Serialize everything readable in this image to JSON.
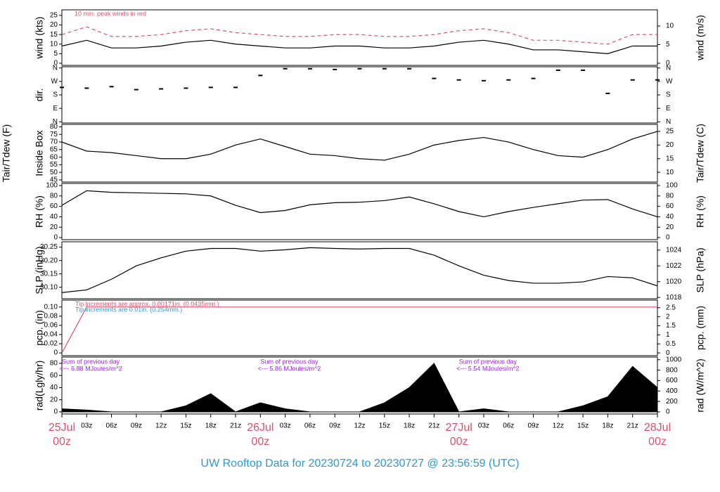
{
  "title": "UW Rooftop Data for 20230724  to  20230727 @ 23:56:59  (UTC)",
  "chart_data": [
    {
      "type": "line",
      "ylabel": "wind (kts)",
      "y2label": "wind (m/s)",
      "x": [
        0,
        3,
        6,
        9,
        12,
        15,
        18,
        21,
        24,
        27,
        30,
        33,
        36,
        39,
        42,
        45,
        48,
        51,
        54,
        57,
        60,
        63,
        66,
        69,
        72
      ],
      "series": [
        {
          "name": "wind",
          "color": "#000000",
          "style": "solid",
          "values": [
            9,
            12,
            8,
            8,
            9,
            11,
            12,
            10,
            9,
            8,
            8,
            9,
            9,
            8,
            8,
            9,
            11,
            12,
            10,
            7,
            7,
            6,
            5,
            9,
            9
          ]
        },
        {
          "name": "peak",
          "color": "#e0506a",
          "style": "dashed",
          "values": [
            15,
            19,
            14,
            14,
            15,
            17,
            18,
            16,
            15,
            14,
            14,
            15,
            15,
            14,
            14,
            15,
            17,
            18,
            16,
            12,
            12,
            11,
            10,
            15,
            15
          ]
        }
      ],
      "annotations": [
        "10 min. peak winds in red"
      ],
      "ylim": [
        -1.1,
        27.9
      ],
      "yticks": [
        0,
        5,
        10,
        15,
        20,
        25
      ],
      "y2lim": [
        -0.57,
        14.35
      ],
      "y2ticks": [
        0,
        5,
        10
      ]
    },
    {
      "type": "scatter",
      "ylabel": "dir.",
      "x": [
        0,
        3,
        6,
        9,
        12,
        15,
        18,
        21,
        24,
        27,
        30,
        33,
        36,
        39,
        42,
        45,
        48,
        51,
        54,
        57,
        60,
        63,
        66,
        69,
        72
      ],
      "series": [
        {
          "name": "dir",
          "color": "#000000",
          "values": [
            230,
            225,
            235,
            215,
            220,
            225,
            230,
            230,
            310,
            355,
            355,
            350,
            355,
            355,
            355,
            290,
            280,
            275,
            280,
            290,
            345,
            345,
            190,
            280,
            280
          ]
        }
      ],
      "ylim": [
        -8,
        368
      ],
      "yticks": [
        {
          "value": 0,
          "label": "N"
        },
        {
          "value": 90,
          "label": "E"
        },
        {
          "value": 180,
          "label": "S"
        },
        {
          "value": 270,
          "label": "W"
        },
        {
          "value": 360,
          "label": "N"
        }
      ],
      "y2lim": [
        -8,
        368
      ],
      "y2ticks": [
        {
          "value": 0,
          "label": "N"
        },
        {
          "value": 90,
          "label": "E"
        },
        {
          "value": 180,
          "label": "S"
        },
        {
          "value": 270,
          "label": "W"
        },
        {
          "value": 360,
          "label": "N"
        }
      ]
    },
    {
      "type": "line",
      "ylabel": "Tair/Tdew (F)",
      "ylabel2": "Inside Box",
      "y2label": "Tair/Tdew (C)",
      "x": [
        0,
        3,
        6,
        9,
        12,
        15,
        18,
        21,
        24,
        27,
        30,
        33,
        36,
        39,
        42,
        45,
        48,
        51,
        54,
        57,
        60,
        63,
        66,
        69,
        72
      ],
      "series": [
        {
          "name": "tair",
          "color": "#000000",
          "style": "solid",
          "values": [
            70,
            64,
            63,
            61,
            59,
            59,
            62,
            68,
            72,
            67,
            62,
            61,
            59,
            58,
            62,
            68,
            71,
            73,
            70,
            65,
            61,
            60,
            65,
            72,
            77
          ]
        }
      ],
      "ylim": [
        43.6,
        81.6
      ],
      "yticks": [
        45,
        50,
        55,
        60,
        65,
        70,
        75,
        80
      ],
      "y2lim": [
        6.44,
        27.56
      ],
      "y2ticks": [
        10,
        15,
        20,
        25
      ]
    },
    {
      "type": "line",
      "ylabel": "RH (%)",
      "y2label": "RH (%)",
      "x": [
        0,
        3,
        6,
        9,
        12,
        15,
        18,
        21,
        24,
        27,
        30,
        33,
        36,
        39,
        42,
        45,
        48,
        51,
        54,
        57,
        60,
        63,
        66,
        69,
        72
      ],
      "series": [
        {
          "name": "rh",
          "color": "#000000",
          "style": "solid",
          "values": [
            62,
            90,
            87,
            86,
            85,
            84,
            80,
            62,
            48,
            52,
            63,
            67,
            68,
            71,
            78,
            65,
            50,
            40,
            50,
            58,
            65,
            72,
            73,
            55,
            40
          ]
        }
      ],
      "ylim": [
        -4,
        104
      ],
      "yticks": [
        0,
        20,
        40,
        60,
        80,
        100
      ],
      "y2lim": [
        -4,
        104
      ],
      "y2ticks": [
        0,
        20,
        40,
        60,
        80,
        100
      ]
    },
    {
      "type": "line",
      "ylabel": "SLP (inHg)",
      "y2label": "SLP (hPa)",
      "x": [
        0,
        3,
        6,
        9,
        12,
        15,
        18,
        21,
        24,
        27,
        30,
        33,
        36,
        39,
        42,
        45,
        48,
        51,
        54,
        57,
        60,
        63,
        66,
        69,
        72
      ],
      "series": [
        {
          "name": "slp",
          "color": "#000000",
          "style": "solid",
          "values": [
            30.08,
            30.09,
            30.13,
            30.18,
            30.21,
            30.235,
            30.245,
            30.245,
            30.235,
            30.24,
            30.248,
            30.245,
            30.243,
            30.245,
            30.245,
            30.22,
            30.18,
            30.145,
            30.125,
            30.115,
            30.115,
            30.12,
            30.14,
            30.135,
            30.105
          ]
        }
      ],
      "ylim": [
        30.057,
        30.27
      ],
      "yticks": [
        {
          "value": 30.1,
          "label": "30.10"
        },
        30.15,
        {
          "value": 30.2,
          "label": "30.20"
        },
        30.25
      ],
      "y2lim": [
        1017.84,
        1025.05
      ],
      "y2ticks": [
        1018,
        1020,
        1022,
        1024
      ]
    },
    {
      "type": "line",
      "ylabel": "pcp. (in)",
      "y2label": "pcp. (mm)",
      "x": [
        0,
        3,
        6,
        9,
        12,
        15,
        18,
        21,
        24,
        27,
        30,
        33,
        36,
        39,
        42,
        45,
        48,
        51,
        54,
        57,
        60,
        63,
        66,
        69,
        72
      ],
      "series": [
        {
          "name": "pcp",
          "color": "#e0506a",
          "style": "solid",
          "values": [
            0,
            0.1,
            0.1,
            0.1,
            0.1,
            0.1,
            0.1,
            0.1,
            0.1,
            0.1,
            0.1,
            0.1,
            0.1,
            0.1,
            0.1,
            0.1,
            0.1,
            0.1,
            0.1,
            0.1,
            0.1,
            0.1,
            0.1,
            0.1,
            0.1
          ]
        }
      ],
      "annotations": [
        "Tip increments are approx. 0.00171in. (0.0435mm.)",
        "Tip increments are 0.01in. (0.254mm.)"
      ],
      "ylim": [
        -0.006,
        0.115
      ],
      "yticks": [
        0,
        0.02,
        0.04,
        0.06,
        0.08,
        {
          "value": 0.1,
          "label": "0.10"
        }
      ],
      "y2lim": [
        -0.15,
        2.92
      ],
      "y2ticks": [
        0,
        0.5,
        1,
        1.5,
        2,
        2.5
      ]
    },
    {
      "type": "area",
      "ylabel": "rad(Lgly/hr)",
      "y2label": "rad (W/m^2)",
      "x": [
        0,
        3,
        6,
        9,
        12,
        15,
        18,
        21,
        24,
        27,
        30,
        33,
        36,
        39,
        42,
        45,
        48,
        51,
        54,
        57,
        60,
        63,
        66,
        69,
        72
      ],
      "series": [
        {
          "name": "rad",
          "color": "#000000",
          "values": [
            5,
            3,
            0,
            0,
            0,
            10,
            30,
            0,
            15,
            5,
            0,
            0,
            0,
            15,
            40,
            80,
            0,
            5,
            0,
            0,
            0,
            10,
            25,
            75,
            40
          ]
        }
      ],
      "annotations": [
        "Sum of previous day",
        "<--- 6.88 MJoules/m^2",
        "Sum of previous day",
        "<--- 5.86 MJoules/m^2",
        "Sum of previous day",
        "<--- 5.54 MJoules/m^2"
      ],
      "ylim": [
        -3.5,
        90.4
      ],
      "yticks": [
        0,
        20,
        40,
        60,
        80
      ],
      "y2lim": [
        -40.7,
        1051
      ],
      "y2ticks": [
        0,
        200,
        400,
        600,
        800,
        1000
      ],
      "xlim": [
        0,
        72
      ],
      "xticks": [
        {
          "value": 0,
          "label": "25Jul 00z"
        },
        {
          "value": 3,
          "label": "03z"
        },
        {
          "value": 6,
          "label": "06z"
        },
        {
          "value": 9,
          "label": "09z"
        },
        {
          "value": 12,
          "label": "12z"
        },
        {
          "value": 15,
          "label": "15z"
        },
        {
          "value": 18,
          "label": "18z"
        },
        {
          "value": 21,
          "label": "21z"
        },
        {
          "value": 24,
          "label": "26Jul 00z"
        },
        {
          "value": 27,
          "label": "03z"
        },
        {
          "value": 30,
          "label": "06z"
        },
        {
          "value": 33,
          "label": "09z"
        },
        {
          "value": 36,
          "label": "12z"
        },
        {
          "value": 39,
          "label": "15z"
        },
        {
          "value": 42,
          "label": "18z"
        },
        {
          "value": 45,
          "label": "21z"
        },
        {
          "value": 48,
          "label": "27Jul 00z"
        },
        {
          "value": 51,
          "label": "03z"
        },
        {
          "value": 54,
          "label": "06z"
        },
        {
          "value": 57,
          "label": "09z"
        },
        {
          "value": 60,
          "label": "12z"
        },
        {
          "value": 63,
          "label": "15z"
        },
        {
          "value": 66,
          "label": "18z"
        },
        {
          "value": 69,
          "label": "21z"
        },
        {
          "value": 72,
          "label": "28Jul 00z"
        }
      ]
    }
  ]
}
